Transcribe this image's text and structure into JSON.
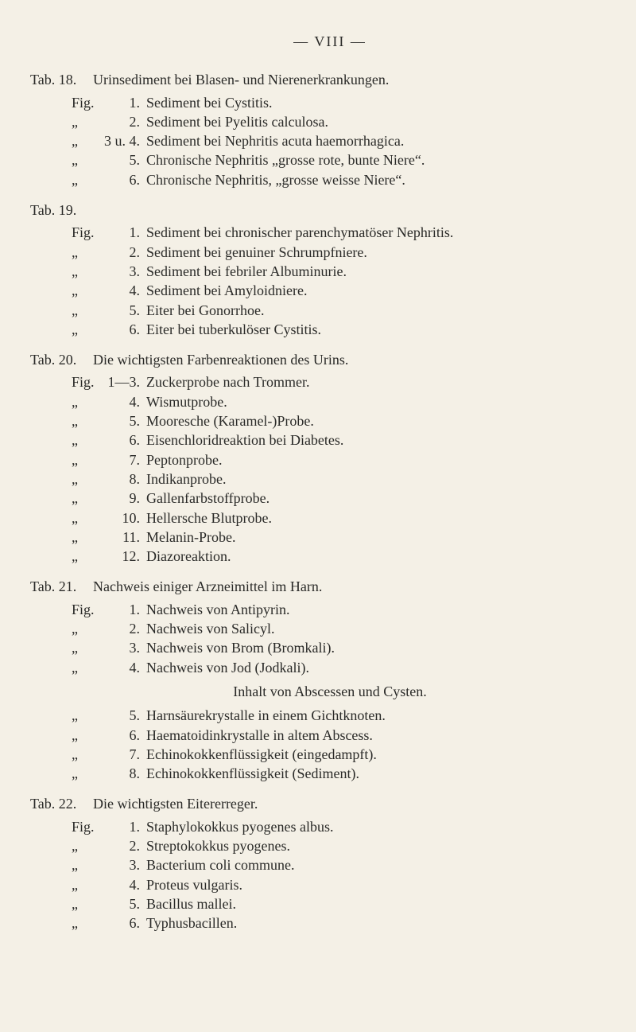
{
  "header": "— VIII —",
  "tabs": [
    {
      "label": "Tab. 18.",
      "heading": "Urinsediment bei Blasen- und Nierenerkrank­ungen.",
      "figs": [
        {
          "prefix": "Fig.",
          "num": "1.",
          "text": "Sediment bei Cystitis."
        },
        {
          "prefix": "„",
          "num": "2.",
          "text": "Sediment bei Pyelitis calculosa."
        },
        {
          "prefix": "„",
          "num": "3 u. 4.",
          "text": "Sediment bei Nephritis acuta haemorrhagica."
        },
        {
          "prefix": "„",
          "num": "5.",
          "text": "Chronische Nephritis „grosse rote, bunte Niere“."
        },
        {
          "prefix": "„",
          "num": "6.",
          "text": "Chronische Nephritis, „grosse weisse Niere“."
        }
      ]
    },
    {
      "label": "Tab. 19.",
      "heading": "",
      "figs": [
        {
          "prefix": "Fig.",
          "num": "1.",
          "text": "Sediment bei chronischer parenchymatöser Nephritis."
        },
        {
          "prefix": "„",
          "num": "2.",
          "text": "Sediment bei genuiner Schrumpfniere."
        },
        {
          "prefix": "„",
          "num": "3.",
          "text": "Sediment bei febriler Albuminurie."
        },
        {
          "prefix": "„",
          "num": "4.",
          "text": "Sediment bei Amyloidniere."
        },
        {
          "prefix": "„",
          "num": "5.",
          "text": "Eiter bei Gonorrhoe."
        },
        {
          "prefix": "„",
          "num": "6.",
          "text": "Eiter bei tuberkulöser Cystitis."
        }
      ]
    },
    {
      "label": "Tab. 20.",
      "heading": "Die wichtigsten Farbenreaktionen des Urins.",
      "figs": [
        {
          "prefix": "Fig.",
          "num": "1—3.",
          "text": "Zuckerprobe nach Trommer."
        },
        {
          "prefix": "„",
          "num": "4.",
          "text": "Wismutprobe."
        },
        {
          "prefix": "„",
          "num": "5.",
          "text": "Mooresche (Karamel-)Probe."
        },
        {
          "prefix": "„",
          "num": "6.",
          "text": "Eisenchloridreaktion bei Diabetes."
        },
        {
          "prefix": "„",
          "num": "7.",
          "text": "Peptonprobe."
        },
        {
          "prefix": "„",
          "num": "8.",
          "text": "Indikanprobe."
        },
        {
          "prefix": "„",
          "num": "9.",
          "text": "Gallenfarbstoffprobe."
        },
        {
          "prefix": "„",
          "num": "10.",
          "text": "Hellersche Blutprobe."
        },
        {
          "prefix": "„",
          "num": "11.",
          "text": "Melanin-Probe."
        },
        {
          "prefix": "„",
          "num": "12.",
          "text": "Diazoreaktion."
        }
      ]
    },
    {
      "label": "Tab. 21.",
      "heading": "Nachweis einiger Arzneimittel im Harn.",
      "figs": [
        {
          "prefix": "Fig.",
          "num": "1.",
          "text": "Nachweis von Antipyrin."
        },
        {
          "prefix": "„",
          "num": "2.",
          "text": "Nachweis von Salicyl."
        },
        {
          "prefix": "„",
          "num": "3.",
          "text": "Nachweis von Brom (Bromkali)."
        },
        {
          "prefix": "„",
          "num": "4.",
          "text": "Nachweis von Jod (Jodkali)."
        }
      ],
      "subheading": "Inhalt von Abscessen und Cysten.",
      "figs2": [
        {
          "prefix": "„",
          "num": "5.",
          "text": "Harnsäurekrystalle in einem Gichtknoten."
        },
        {
          "prefix": "„",
          "num": "6.",
          "text": "Haematoidinkrystalle in altem Abscess."
        },
        {
          "prefix": "„",
          "num": "7.",
          "text": "Echinokokkenflüssigkeit (eingedampft)."
        },
        {
          "prefix": "„",
          "num": "8.",
          "text": "Echinokokkenflüssigkeit (Sediment)."
        }
      ]
    },
    {
      "label": "Tab. 22.",
      "heading": "Die wichtigsten Eitererreger.",
      "figs": [
        {
          "prefix": "Fig.",
          "num": "1.",
          "text": "Staphylokokkus pyogenes albus."
        },
        {
          "prefix": "„",
          "num": "2.",
          "text": "Streptokokkus pyogenes."
        },
        {
          "prefix": "„",
          "num": "3.",
          "text": "Bacterium coli commune."
        },
        {
          "prefix": "„",
          "num": "4.",
          "text": "Proteus vulgaris."
        },
        {
          "prefix": "„",
          "num": "5.",
          "text": "Bacillus mallei."
        },
        {
          "prefix": "„",
          "num": "6.",
          "text": "Typhusbacillen."
        }
      ]
    }
  ]
}
